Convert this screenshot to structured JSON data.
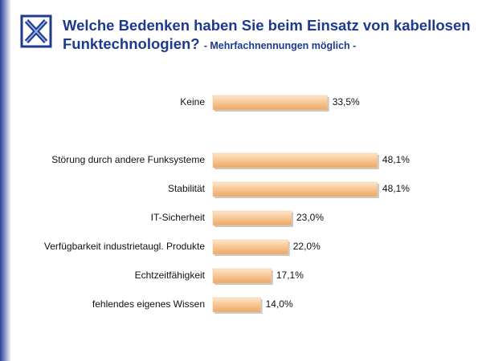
{
  "chart_data": {
    "type": "bar",
    "orientation": "horizontal",
    "title": "Welche Bedenken haben Sie beim Einsatz von kabellosen Funktechnologien?",
    "subtitle": "- Mehrfachnennungen möglich -",
    "categories": [
      "Keine",
      null,
      "Störung durch andere Funksysteme",
      "Stabilität",
      "IT-Sicherheit",
      "Verfügbarkeit industrietaugl. Produkte",
      "Echtzeitfähigkeit",
      "fehlendes eigenes Wissen"
    ],
    "values": [
      33.5,
      null,
      48.1,
      48.1,
      23.0,
      22.0,
      17.1,
      14.0
    ],
    "value_labels": [
      "33,5%",
      null,
      "48,1%",
      "48,1%",
      "23,0%",
      "22,0%",
      "17,1%",
      "14,0%"
    ],
    "color": "#f7c590"
  }
}
